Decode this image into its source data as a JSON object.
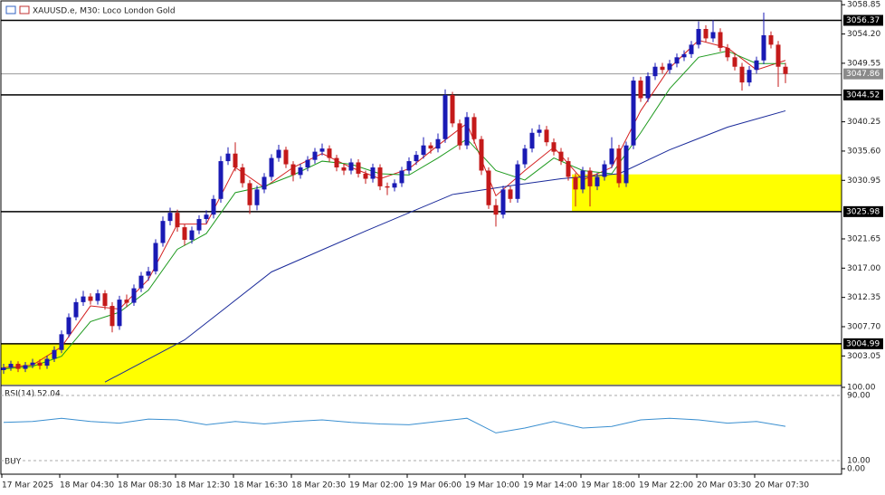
{
  "chart_data": {
    "type": "candlestick",
    "title": "XAUUSD.e, M30: Loco London Gold",
    "categories": [
      "17 Mar 2025",
      null,
      null,
      null,
      null,
      null,
      null,
      null,
      "18 Mar 04:30",
      null,
      null,
      null,
      null,
      null,
      null,
      null,
      "18 Mar 08:30",
      null,
      null,
      null,
      null,
      null,
      null,
      null,
      "18 Mar 12:30",
      null,
      null,
      null,
      null,
      null,
      null,
      null,
      "18 Mar 16:30",
      null,
      null,
      null,
      null,
      null,
      null,
      null,
      "18 Mar 20:30",
      null,
      null,
      null,
      null,
      null,
      null,
      null,
      "19 Mar 02:00",
      null,
      null,
      null,
      null,
      null,
      null,
      null,
      "19 Mar 06:00",
      null,
      null,
      null,
      null,
      null,
      null,
      null,
      "19 Mar 10:00",
      null,
      null,
      null,
      null,
      null,
      null,
      null,
      "19 Mar 14:00",
      null,
      null,
      null,
      null,
      null,
      null,
      null,
      "19 Mar 18:00",
      null,
      null,
      null,
      null,
      null,
      null,
      null,
      "19 Mar 22:00",
      null,
      null,
      null,
      null,
      null,
      null,
      null,
      "20 Mar 03:30",
      null,
      null,
      null,
      null,
      null,
      null,
      null,
      "20 Mar 07:30",
      null,
      null,
      null,
      null
    ],
    "ohlc": [
      [
        3000.8,
        3001.8,
        3000.2,
        3001.2
      ],
      [
        3001.2,
        3002.3,
        3000.7,
        3001.8
      ],
      [
        3001.8,
        3002.2,
        3000.5,
        3001.0
      ],
      [
        3001.0,
        3002.1,
        3000.5,
        3001.6
      ],
      [
        3001.6,
        3002.6,
        3001.1,
        3002.0
      ],
      [
        3002.0,
        3002.5,
        3000.9,
        3001.5
      ],
      [
        3001.5,
        3003.1,
        3001.0,
        3002.6
      ],
      [
        3002.6,
        3004.6,
        3002.1,
        3004.0
      ],
      [
        3004.0,
        3007.1,
        3003.5,
        3006.5
      ],
      [
        3006.5,
        3009.8,
        3006.0,
        3009.2
      ],
      [
        3009.2,
        3012.2,
        3008.7,
        3011.6
      ],
      [
        3011.6,
        3013.4,
        3011.0,
        3012.5
      ],
      [
        3012.5,
        3013.0,
        3011.2,
        3011.8
      ],
      [
        3011.8,
        3013.6,
        3011.2,
        3013.0
      ],
      [
        3013.0,
        3013.5,
        3010.4,
        3011.0
      ],
      [
        3011.0,
        3011.6,
        3006.8,
        3007.8
      ],
      [
        3007.8,
        3012.6,
        3007.2,
        3012.0
      ],
      [
        3012.0,
        3012.8,
        3010.8,
        3011.5
      ],
      [
        3011.5,
        3014.4,
        3011.0,
        3013.8
      ],
      [
        3013.8,
        3016.4,
        3013.2,
        3015.8
      ],
      [
        3015.8,
        3017.2,
        3015.0,
        3016.5
      ],
      [
        3016.5,
        3021.6,
        3016.0,
        3021.0
      ],
      [
        3021.0,
        3025.2,
        3020.4,
        3024.5
      ],
      [
        3024.5,
        3026.6,
        3023.8,
        3025.8
      ],
      [
        3025.8,
        3026.3,
        3022.8,
        3023.5
      ],
      [
        3023.5,
        3024.0,
        3020.6,
        3021.5
      ],
      [
        3021.5,
        3023.6,
        3020.9,
        3023.0
      ],
      [
        3023.0,
        3025.4,
        3022.4,
        3024.8
      ],
      [
        3024.8,
        3026.2,
        3024.1,
        3025.5
      ],
      [
        3025.5,
        3028.6,
        3024.9,
        3028.0
      ],
      [
        3028.0,
        3034.8,
        3027.4,
        3034.0
      ],
      [
        3034.0,
        3036.2,
        3033.4,
        3035.2
      ],
      [
        3035.2,
        3037.0,
        3032.4,
        3033.0
      ],
      [
        3033.0,
        3033.6,
        3029.8,
        3030.5
      ],
      [
        3030.5,
        3031.0,
        3025.6,
        3027.0
      ],
      [
        3027.0,
        3030.1,
        3026.2,
        3029.5
      ],
      [
        3029.5,
        3032.1,
        3028.9,
        3031.5
      ],
      [
        3031.5,
        3035.1,
        3030.9,
        3034.5
      ],
      [
        3034.5,
        3036.6,
        3033.9,
        3035.8
      ],
      [
        3035.8,
        3036.3,
        3032.9,
        3033.5
      ],
      [
        3033.5,
        3034.0,
        3030.8,
        3031.8
      ],
      [
        3031.8,
        3033.6,
        3031.2,
        3033.0
      ],
      [
        3033.0,
        3034.8,
        3032.4,
        3034.2
      ],
      [
        3034.2,
        3036.1,
        3033.6,
        3035.5
      ],
      [
        3035.5,
        3036.8,
        3034.9,
        3036.0
      ],
      [
        3036.0,
        3036.5,
        3033.9,
        3034.5
      ],
      [
        3034.5,
        3035.0,
        3032.4,
        3033.0
      ],
      [
        3033.0,
        3033.6,
        3031.8,
        3032.5
      ],
      [
        3032.5,
        3034.4,
        3031.9,
        3033.8
      ],
      [
        3033.8,
        3034.3,
        3031.4,
        3032.0
      ],
      [
        3032.0,
        3032.5,
        3030.4,
        3031.2
      ],
      [
        3031.2,
        3033.6,
        3030.6,
        3033.0
      ],
      [
        3033.0,
        3033.5,
        3029.4,
        3030.0
      ],
      [
        3030.0,
        3030.6,
        3028.6,
        3029.8
      ],
      [
        3029.8,
        3031.1,
        3029.2,
        3030.5
      ],
      [
        3030.5,
        3033.1,
        3029.9,
        3032.5
      ],
      [
        3032.5,
        3034.6,
        3031.9,
        3034.0
      ],
      [
        3034.0,
        3035.6,
        3033.4,
        3035.0
      ],
      [
        3035.0,
        3037.8,
        3034.4,
        3036.5
      ],
      [
        3036.5,
        3037.0,
        3035.2,
        3036.0
      ],
      [
        3036.0,
        3038.4,
        3035.4,
        3037.5
      ],
      [
        3037.5,
        3045.4,
        3036.9,
        3044.5
      ],
      [
        3044.5,
        3045.0,
        3039.4,
        3040.0
      ],
      [
        3040.0,
        3040.6,
        3035.8,
        3036.5
      ],
      [
        3036.5,
        3041.8,
        3035.9,
        3041.0
      ],
      [
        3041.0,
        3041.6,
        3036.8,
        3037.5
      ],
      [
        3037.5,
        3038.0,
        3031.8,
        3032.5
      ],
      [
        3032.5,
        3033.0,
        3026.4,
        3027.0
      ],
      [
        3027.0,
        3028.0,
        3023.6,
        3025.5
      ],
      [
        3025.5,
        3030.1,
        3024.9,
        3029.5
      ],
      [
        3029.5,
        3030.0,
        3027.4,
        3028.0
      ],
      [
        3028.0,
        3034.1,
        3027.4,
        3033.5
      ],
      [
        3033.5,
        3036.6,
        3032.9,
        3036.0
      ],
      [
        3036.0,
        3039.2,
        3035.4,
        3038.5
      ],
      [
        3038.5,
        3039.8,
        3037.9,
        3039.0
      ],
      [
        3039.0,
        3039.6,
        3036.4,
        3037.0
      ],
      [
        3037.0,
        3037.6,
        3034.9,
        3035.5
      ],
      [
        3035.5,
        3036.1,
        3033.4,
        3034.0
      ],
      [
        3034.0,
        3034.6,
        3030.9,
        3031.5
      ],
      [
        3031.5,
        3032.1,
        3026.8,
        3029.5
      ],
      [
        3029.5,
        3033.1,
        3028.9,
        3032.5
      ],
      [
        3032.5,
        3033.0,
        3026.8,
        3030.0
      ],
      [
        3030.0,
        3032.1,
        3029.4,
        3031.5
      ],
      [
        3031.5,
        3034.1,
        3030.9,
        3033.5
      ],
      [
        3033.5,
        3037.8,
        3032.9,
        3036.0
      ],
      [
        3036.0,
        3036.6,
        3029.8,
        3030.5
      ],
      [
        3030.5,
        3037.1,
        3029.9,
        3036.5
      ],
      [
        3036.5,
        3047.4,
        3035.9,
        3046.8
      ],
      [
        3046.8,
        3047.4,
        3043.4,
        3044.0
      ],
      [
        3044.0,
        3048.1,
        3043.4,
        3047.5
      ],
      [
        3047.5,
        3049.6,
        3046.9,
        3049.0
      ],
      [
        3049.0,
        3049.6,
        3047.9,
        3048.5
      ],
      [
        3048.5,
        3050.1,
        3047.9,
        3049.5
      ],
      [
        3049.5,
        3051.1,
        3048.9,
        3050.5
      ],
      [
        3050.5,
        3051.6,
        3049.9,
        3051.0
      ],
      [
        3051.0,
        3053.1,
        3050.4,
        3052.5
      ],
      [
        3052.5,
        3056.2,
        3051.9,
        3055.0
      ],
      [
        3055.0,
        3055.6,
        3052.9,
        3053.5
      ],
      [
        3053.5,
        3056.4,
        3052.9,
        3054.5
      ],
      [
        3054.5,
        3055.1,
        3051.4,
        3052.0
      ],
      [
        3052.0,
        3052.6,
        3049.9,
        3050.5
      ],
      [
        3050.5,
        3051.1,
        3048.4,
        3049.0
      ],
      [
        3049.0,
        3049.6,
        3045.2,
        3046.5
      ],
      [
        3046.5,
        3049.1,
        3045.9,
        3048.5
      ],
      [
        3048.5,
        3050.6,
        3047.9,
        3050.0
      ],
      [
        3050.0,
        3057.6,
        3049.4,
        3054.0
      ],
      [
        3054.0,
        3054.6,
        3051.9,
        3052.5
      ],
      [
        3052.5,
        3053.1,
        3045.8,
        3049.0
      ],
      [
        3049.0,
        3049.6,
        3046.4,
        3047.86
      ]
    ],
    "up_color": "#1a1ab4",
    "down_color": "#c41a1a",
    "moving_averages": [
      {
        "color": "#d42020",
        "x": [
          0,
          4,
          8,
          12,
          16,
          20,
          24,
          28,
          32,
          36,
          40,
          44,
          48,
          52,
          56,
          60,
          64,
          68,
          72,
          76,
          80,
          84,
          88,
          92,
          96,
          100,
          104,
          108
        ],
        "values": [
          3001.2,
          3001.6,
          3004.5,
          3011.0,
          3010.5,
          3015.2,
          3024.0,
          3024.0,
          3033.0,
          3029.8,
          3033.0,
          3035.2,
          3033.0,
          3031.2,
          3032.8,
          3036.5,
          3040.0,
          3028.5,
          3032.5,
          3036.2,
          3031.0,
          3033.0,
          3042.0,
          3048.8,
          3053.2,
          3052.0,
          3048.5,
          3050.0
        ]
      },
      {
        "color": "#1e9a1e",
        "x": [
          0,
          4,
          8,
          12,
          16,
          20,
          24,
          28,
          32,
          36,
          40,
          44,
          48,
          52,
          56,
          60,
          64,
          68,
          72,
          76,
          80,
          84,
          88,
          92,
          96,
          100,
          104,
          108
        ],
        "values": [
          3001.0,
          3001.4,
          3003.0,
          3008.5,
          3010.0,
          3013.5,
          3020.0,
          3022.5,
          3029.0,
          3030.0,
          3031.8,
          3034.0,
          3033.5,
          3032.0,
          3031.8,
          3034.5,
          3037.5,
          3032.5,
          3031.0,
          3034.5,
          3032.5,
          3032.0,
          3038.5,
          3045.5,
          3050.5,
          3051.5,
          3049.5,
          3049.5
        ]
      },
      {
        "color": "#1a2a9a",
        "x": [
          14,
          25,
          37,
          50,
          62,
          70,
          77,
          85,
          92,
          100,
          108
        ],
        "values": [
          2998.9,
          3005.6,
          3016.4,
          3022.9,
          3028.7,
          3030.1,
          3031.2,
          3032.0,
          3035.8,
          3039.4,
          3042.0
        ]
      }
    ],
    "ylim": [
      2998.5,
      3059.6
    ],
    "yticks": [
      3058.85,
      {
        "value": 3054.2,
        "label": "3054.20"
      },
      3049.55,
      3040.25,
      {
        "value": 3035.6,
        "label": "3035.60"
      },
      3030.95,
      3021.65,
      {
        "value": 3017,
        "label": "3017.00"
      },
      3012.35,
      {
        "value": 3007.7,
        "label": "3007.70"
      },
      3003.05
    ],
    "price_lines": [
      {
        "value": 3056.37,
        "label": "3056.37"
      },
      {
        "value": 3044.52,
        "label": "3044.52"
      },
      {
        "value": 3025.98,
        "label": "3025.98"
      },
      {
        "value": 3004.99,
        "label": "3004.99"
      }
    ],
    "current_price": {
      "value": 3047.86,
      "label": "3047.86"
    },
    "zones": [
      {
        "color": "#ffff00",
        "from": 3025.98,
        "to": 3031.9
      },
      {
        "color": "#ffff00",
        "from": 2998.5,
        "to": 3004.99
      }
    ],
    "rsi": {
      "label": "RSI(14) 52.04",
      "color": "#3a8fd0",
      "x": [
        0,
        4,
        8,
        12,
        16,
        20,
        24,
        28,
        32,
        36,
        40,
        44,
        48,
        52,
        56,
        60,
        64,
        68,
        72,
        76,
        80,
        84,
        88,
        92,
        96,
        100,
        104,
        108
      ],
      "values": [
        57,
        58,
        62,
        58,
        56,
        61,
        60,
        54,
        58,
        55,
        58,
        60,
        57,
        55,
        54,
        58,
        62,
        44,
        50,
        58,
        50,
        52,
        60,
        62,
        60,
        56,
        58,
        52.04
      ],
      "ylim": [
        0,
        100
      ],
      "yticks": [
        {
          "value": 100,
          "label": "100.00"
        },
        {
          "value": 90,
          "label": "90.00"
        },
        {
          "value": 10,
          "label": "10.00"
        },
        {
          "value": 0,
          "label": "0.00"
        }
      ]
    },
    "signal": "BUY"
  }
}
